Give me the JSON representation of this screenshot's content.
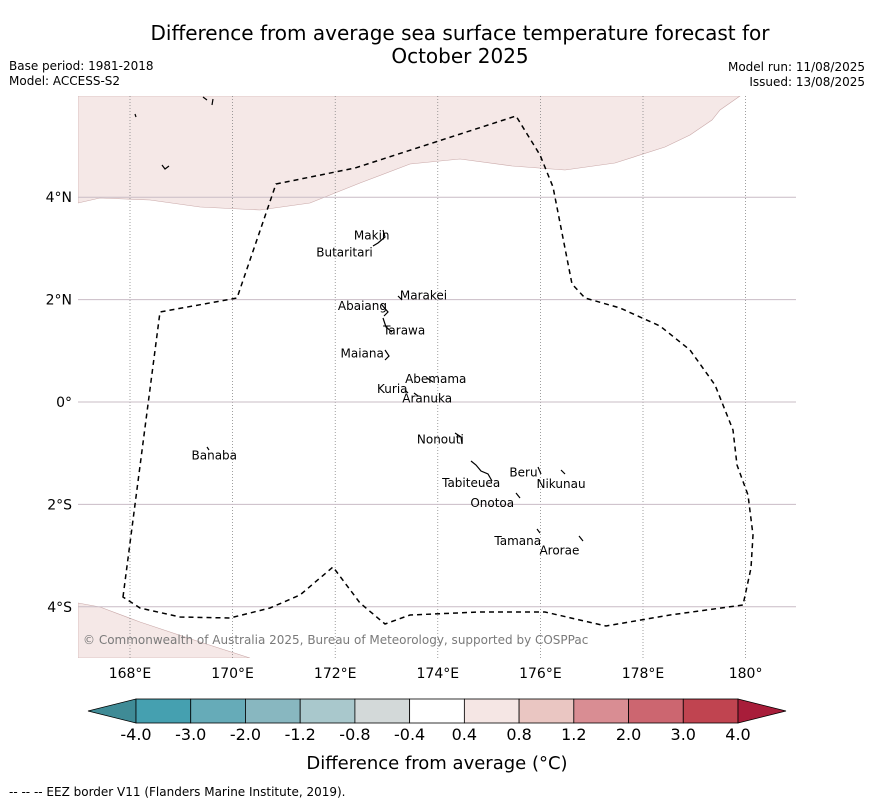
{
  "header": {
    "title_line1": "Difference from average sea surface temperature forecast for",
    "title_line2": "October 2025",
    "base_period": "Base period: 1981-2018",
    "model": "Model: ACCESS-S2",
    "model_run": "Model run: 11/08/2025",
    "issued": "Issued: 13/08/2025"
  },
  "map": {
    "lon_range": [
      167,
      181
    ],
    "lat_range": [
      -5,
      6
    ],
    "lon_ticks": [
      {
        "value": 168,
        "label": "168°E"
      },
      {
        "value": 170,
        "label": "170°E"
      },
      {
        "value": 172,
        "label": "172°E"
      },
      {
        "value": 174,
        "label": "174°E"
      },
      {
        "value": 176,
        "label": "176°E"
      },
      {
        "value": 178,
        "label": "178°E"
      },
      {
        "value": 180,
        "label": "180°"
      }
    ],
    "lat_ticks": [
      {
        "value": 4,
        "label": "4°N"
      },
      {
        "value": 2,
        "label": "2°N"
      },
      {
        "value": 0,
        "label": "0°"
      },
      {
        "value": -2,
        "label": "2°S"
      },
      {
        "value": -4,
        "label": "4°S"
      }
    ],
    "islands": [
      {
        "name": "Makin",
        "lon": 172.95,
        "lat": 3.1
      },
      {
        "name": "Butaritari",
        "lon": 172.8,
        "lat": 3.0
      },
      {
        "name": "Marakei",
        "lon": 173.3,
        "lat": 2.0
      },
      {
        "name": "Abaiang",
        "lon": 172.95,
        "lat": 1.8
      },
      {
        "name": "Tarawa",
        "lon": 173.05,
        "lat": 1.4
      },
      {
        "name": "Maiana",
        "lon": 173.0,
        "lat": 0.95
      },
      {
        "name": "Abemama",
        "lon": 173.85,
        "lat": 0.45
      },
      {
        "name": "Kuria",
        "lon": 173.4,
        "lat": 0.25
      },
      {
        "name": "Aranuka",
        "lon": 173.6,
        "lat": 0.15
      },
      {
        "name": "Nonouti",
        "lon": 174.45,
        "lat": -0.65
      },
      {
        "name": "Banaba",
        "lon": 169.55,
        "lat": -0.85
      },
      {
        "name": "Tabiteuea",
        "lon": 175.0,
        "lat": -1.35
      },
      {
        "name": "Beru",
        "lon": 176.0,
        "lat": -1.3
      },
      {
        "name": "Nikunau",
        "lon": 176.45,
        "lat": -1.35
      },
      {
        "name": "Onotoa",
        "lon": 175.55,
        "lat": -1.8
      },
      {
        "name": "Tamana",
        "lon": 176.0,
        "lat": -2.5
      },
      {
        "name": "Arorae",
        "lon": 176.8,
        "lat": -2.65
      }
    ],
    "copyright": "© Commonwealth of Australia 2025, Bureau of Meteorology, supported by COSPPac"
  },
  "colorbar": {
    "colors": [
      "#3f8b96",
      "#45a0b0",
      "#66abb8",
      "#88b7c0",
      "#a9c8cc",
      "#d3d9d9",
      "#ffffff",
      "#f5e6e4",
      "#eac6c2",
      "#d98d93",
      "#cc6670",
      "#c04450",
      "#a81d3a"
    ],
    "tick_labels": [
      "-4.0",
      "-3.0",
      "-2.0",
      "-1.2",
      "-0.8",
      "-0.4",
      "0.4",
      "0.8",
      "1.2",
      "2.0",
      "3.0",
      "4.0"
    ],
    "title": "Difference from average (°C)"
  },
  "footer": {
    "eez_legend": "--  --  -- EEZ border V11 (Flanders Marine Institute, 2019)."
  }
}
